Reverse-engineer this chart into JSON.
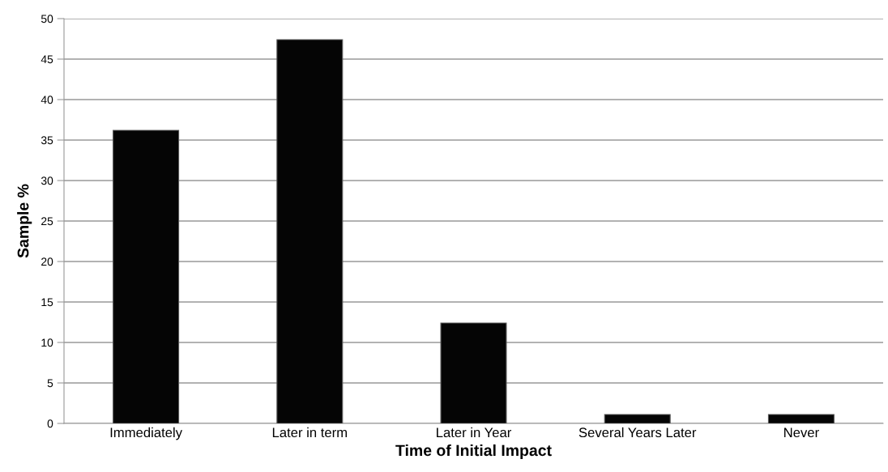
{
  "chart_data": {
    "type": "bar",
    "categories": [
      "Immediately",
      "Later in term",
      "Later in Year",
      "Several Years Later",
      "Never"
    ],
    "values": [
      36.2,
      47.4,
      12.4,
      1.1,
      1.1
    ],
    "color": "#050505",
    "xlabel": "Time of Initial Impact",
    "ylabel": "Sample %",
    "ylim": [
      0,
      50
    ],
    "yticks": [
      0,
      5,
      10,
      15,
      20,
      25,
      30,
      35,
      40,
      45,
      50
    ],
    "grid": "y"
  }
}
